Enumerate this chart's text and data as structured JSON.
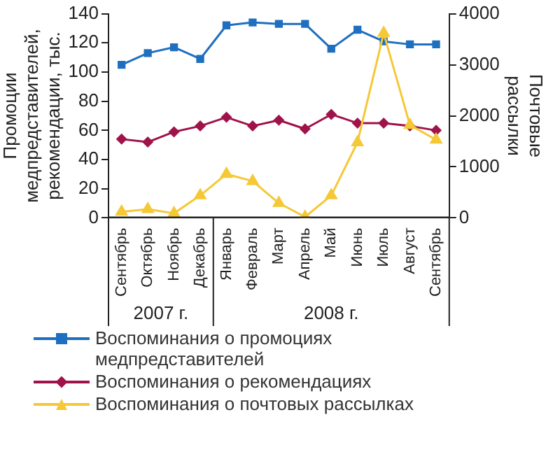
{
  "chart_data": {
    "type": "line",
    "ylabel": "Промоции медпредставителей, рекомендации, тыс.",
    "y2label": "Почтовые рассылки",
    "categories": [
      "Сентябрь",
      "Октябрь",
      "Ноябрь",
      "Декабрь",
      "Январь",
      "Февраль",
      "Март",
      "Апрель",
      "Май",
      "Июнь",
      "Июль",
      "Август",
      "Сентябрь"
    ],
    "series": [
      {
        "name": "Воспоминания о промоциях медпредставителей",
        "color": "#1f6fc0",
        "marker": "square",
        "values": [
          105,
          113,
          117,
          109,
          132,
          134,
          133,
          133,
          116,
          129,
          121,
          119,
          119
        ]
      },
      {
        "name": "Воспоминания о рекомендациях",
        "color": "#a0124a",
        "marker": "diamond",
        "values": [
          54,
          52,
          59,
          63,
          69,
          63,
          67,
          61,
          71,
          65,
          65,
          63,
          60
        ]
      },
      {
        "name": "Воспоминания о почтовых рассылках",
        "color": "#f5c836",
        "marker": "triangle",
        "axis": "y2",
        "values": [
          120,
          170,
          90,
          440,
          860,
          720,
          290,
          20,
          440,
          1480,
          3620,
          1820,
          1530
        ]
      }
    ],
    "ylim": [
      0,
      140
    ],
    "yticks": [
      0,
      20,
      40,
      60,
      80,
      100,
      120,
      140
    ],
    "y2lim": [
      0,
      4000
    ],
    "y2ticks": [
      0,
      1000,
      2000,
      3000,
      4000
    ],
    "annotations": [
      "2007 г.",
      "2008 г."
    ],
    "grid": false,
    "legend": "bottom"
  }
}
